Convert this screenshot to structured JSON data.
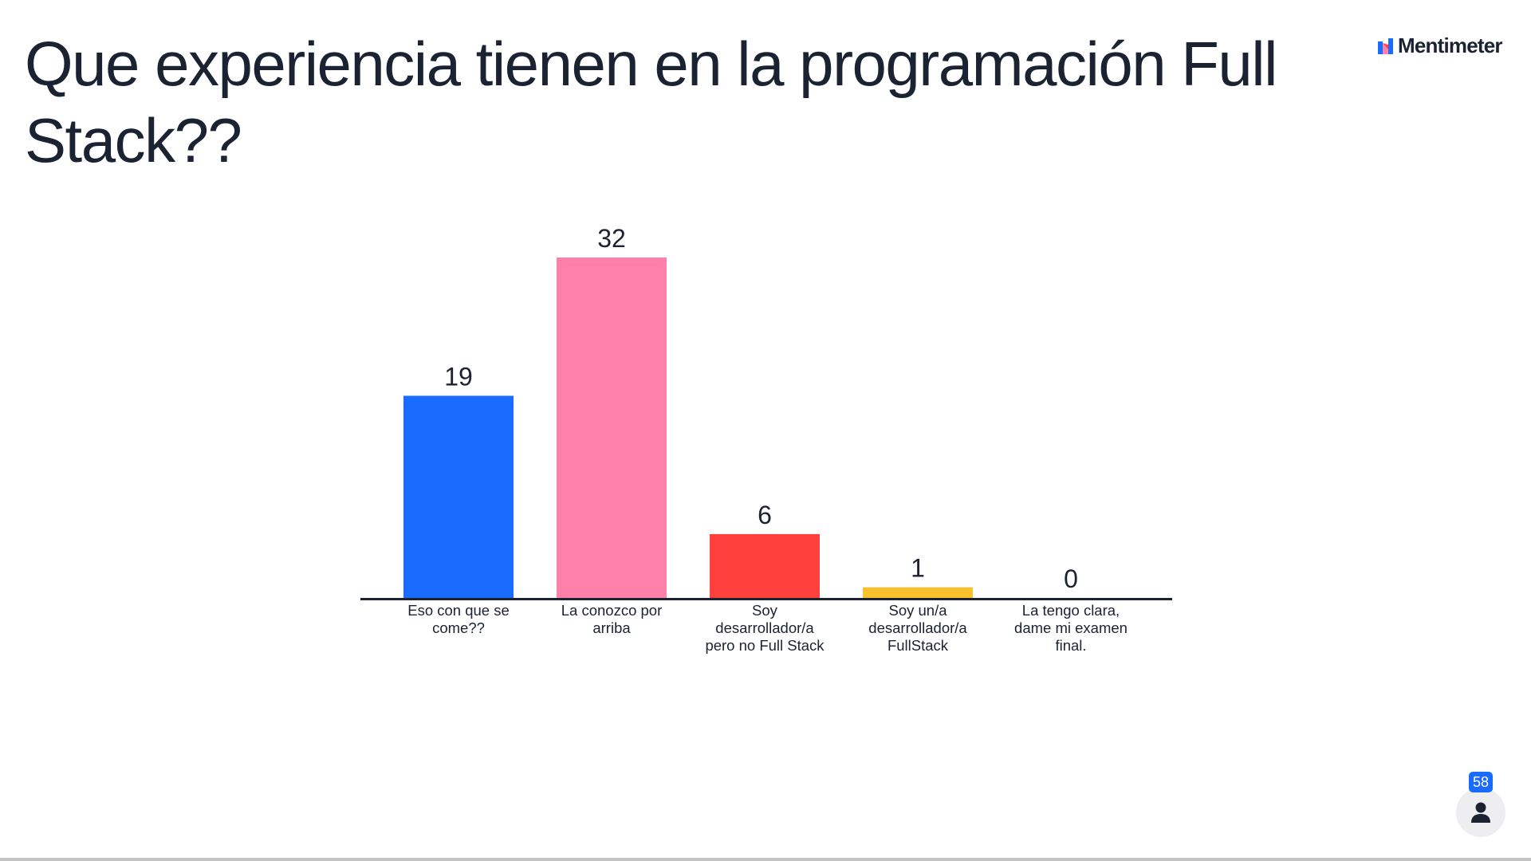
{
  "title": "Que experiencia tienen en la programación Full Stack??",
  "brand": {
    "name": "Mentimeter",
    "logo_icon": "mentimeter-logo-icon"
  },
  "participants": {
    "count": "58",
    "icon": "person-icon"
  },
  "colors": {
    "text": "#1b2232",
    "axis": "#1b2232",
    "badge": "#196cff"
  },
  "chart_data": {
    "type": "bar",
    "categories": [
      "Eso con que se come??",
      "La conozco por arriba",
      "Soy desarrollador/a pero no Full Stack",
      "Soy un/a desarrollador/a FullStack",
      "La tengo clara, dame mi examen final."
    ],
    "values": [
      19,
      32,
      6,
      1,
      0
    ],
    "colors": [
      "#196cff",
      "#ff80ab",
      "#ff403d",
      "#fbc02d",
      "#1b2232"
    ],
    "title": "",
    "xlabel": "",
    "ylabel": "",
    "ylim": [
      0,
      32
    ],
    "grid": false,
    "legend": "none"
  }
}
